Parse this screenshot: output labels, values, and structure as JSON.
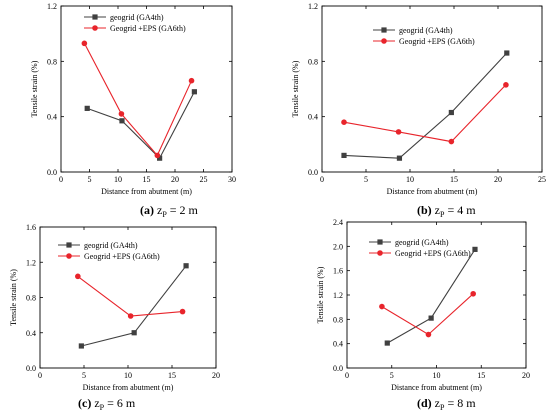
{
  "chart_data": [
    {
      "type": "line",
      "panel_letter": "(a)",
      "caption": "z",
      "caption_sub": "P",
      "caption_value": " = 2 m",
      "xlabel": "Distance from abutment (m)",
      "ylabel": "Tensile strain (%)",
      "xlim": [
        0,
        30
      ],
      "ylim": [
        0,
        1.2
      ],
      "xticks": [
        0,
        5,
        10,
        15,
        20,
        25,
        30
      ],
      "xtick_labels": [
        "0",
        "5",
        "10",
        "15",
        "20",
        "25",
        "30"
      ],
      "yticks": [
        0,
        0.4,
        0.8,
        1.2
      ],
      "ytick_labels": [
        "0.0",
        "0.4",
        "0.8",
        "1.2"
      ],
      "legend_position": "top-right",
      "series": [
        {
          "name": "geogrid (GA4th)",
          "color": "#404040",
          "marker": "square",
          "x": [
            4.6,
            10.7,
            17.3,
            23.4
          ],
          "y": [
            0.46,
            0.37,
            0.1,
            0.58
          ]
        },
        {
          "name": "Geogrid +EPS (GA6th)",
          "color": "#e8242b",
          "marker": "circle",
          "x": [
            4.1,
            10.6,
            16.9,
            22.9
          ],
          "y": [
            0.93,
            0.42,
            0.12,
            0.66
          ]
        }
      ]
    },
    {
      "type": "line",
      "panel_letter": "(b)",
      "caption": "z",
      "caption_sub": "P",
      "caption_value": " = 4 m",
      "xlabel": "Distance from abutment (m)",
      "ylabel": "Tensile strain (%)",
      "xlim": [
        0,
        25
      ],
      "ylim": [
        0,
        1.2
      ],
      "xticks": [
        0,
        5,
        10,
        15,
        20,
        25
      ],
      "xtick_labels": [
        "0",
        "5",
        "10",
        "15",
        "20",
        "25"
      ],
      "yticks": [
        0,
        0.4,
        0.8,
        1.2
      ],
      "ytick_labels": [
        "0.0",
        "0.4",
        "0.8",
        "1.2"
      ],
      "legend_position": "top-right",
      "series": [
        {
          "name": "geogrid (GA4th)",
          "color": "#404040",
          "marker": "square",
          "x": [
            2.5,
            8.8,
            14.7,
            21.0
          ],
          "y": [
            0.12,
            0.1,
            0.43,
            0.86
          ]
        },
        {
          "name": "Geogrid +EPS (GA6th)",
          "color": "#e8242b",
          "marker": "circle",
          "x": [
            2.5,
            8.7,
            14.7,
            20.9
          ],
          "y": [
            0.36,
            0.29,
            0.22,
            0.63
          ]
        }
      ]
    },
    {
      "type": "line",
      "panel_letter": "(c)",
      "caption": "z",
      "caption_sub": "P",
      "caption_value": " = 6 m",
      "xlabel": "Distance from abutment (m)",
      "ylabel": "Tensile strain (%)",
      "xlim": [
        0,
        20
      ],
      "ylim": [
        0,
        1.6
      ],
      "xticks": [
        0,
        5,
        10,
        15,
        20
      ],
      "xtick_labels": [
        "0",
        "5",
        "10",
        "15",
        "20"
      ],
      "yticks": [
        0,
        0.4,
        0.8,
        1.2,
        1.6
      ],
      "ytick_labels": [
        "0.0",
        "0.4",
        "0.8",
        "1.2",
        "1.6"
      ],
      "legend_position": "top-right",
      "series": [
        {
          "name": "geogrid (GA4th)",
          "color": "#404040",
          "marker": "square",
          "x": [
            4.7,
            10.7,
            16.6
          ],
          "y": [
            0.25,
            0.4,
            1.16
          ]
        },
        {
          "name": "Geogrid +EPS (GA6th)",
          "color": "#e8242b",
          "marker": "circle",
          "x": [
            4.3,
            10.3,
            16.2
          ],
          "y": [
            1.04,
            0.59,
            0.64
          ]
        }
      ]
    },
    {
      "type": "line",
      "panel_letter": "(d)",
      "caption": "z",
      "caption_sub": "P",
      "caption_value": " = 8 m",
      "xlabel": "Distance from abutment (m)",
      "ylabel": "Tensile strain (%)",
      "xlim": [
        0,
        20
      ],
      "ylim": [
        0,
        2.4
      ],
      "xticks": [
        0,
        5,
        10,
        15,
        20
      ],
      "xtick_labels": [
        "0",
        "5",
        "10",
        "15",
        "20"
      ],
      "yticks": [
        0,
        0.4,
        0.8,
        1.2,
        1.6,
        2.0,
        2.4
      ],
      "ytick_labels": [
        "0.0",
        "0.4",
        "0.8",
        "1.2",
        "1.6",
        "2.0",
        "2.4"
      ],
      "legend_position": "top-left",
      "series": [
        {
          "name": "geogrid (GA4th)",
          "color": "#404040",
          "marker": "square",
          "x": [
            4.5,
            9.4,
            14.3
          ],
          "y": [
            0.41,
            0.82,
            1.95
          ]
        },
        {
          "name": "Geogrid +EPS (GA6th)",
          "color": "#e8242b",
          "marker": "circle",
          "x": [
            3.9,
            9.1,
            14.1
          ],
          "y": [
            1.01,
            0.55,
            1.22
          ]
        }
      ]
    }
  ]
}
